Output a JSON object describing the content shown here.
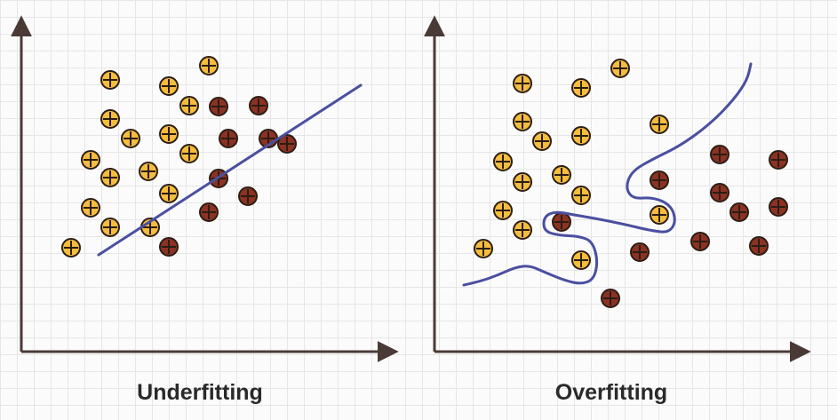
{
  "panels": [
    {
      "id": "underfitting",
      "caption": "Underfitting",
      "points": {
        "yellow": [
          [
            80,
            279
          ],
          [
            102,
            180
          ],
          [
            102,
            234
          ],
          [
            124,
            90
          ],
          [
            124,
            134
          ],
          [
            124,
            200
          ],
          [
            124,
            256
          ],
          [
            147,
            156
          ],
          [
            167,
            193
          ],
          [
            169,
            256
          ],
          [
            190,
            97
          ],
          [
            190,
            151
          ],
          [
            190,
            218
          ],
          [
            213,
            119
          ],
          [
            213,
            173
          ],
          [
            235,
            74
          ]
        ],
        "red": [
          [
            190,
            278
          ],
          [
            235,
            239
          ],
          [
            246,
            120
          ],
          [
            246,
            201
          ],
          [
            257,
            156
          ],
          [
            279,
            221
          ],
          [
            291,
            119
          ],
          [
            302,
            156
          ],
          [
            323,
            162
          ]
        ]
      },
      "fit_line": [
        [
          111,
          287
        ],
        [
          406,
          96
        ]
      ]
    },
    {
      "id": "overfitting",
      "caption": "Overfitting",
      "points": {
        "yellow": [
          [
            544,
            280
          ],
          [
            566,
            182
          ],
          [
            566,
            237
          ],
          [
            588,
            94
          ],
          [
            588,
            137
          ],
          [
            588,
            205
          ],
          [
            588,
            259
          ],
          [
            610,
            159
          ],
          [
            632,
            197
          ],
          [
            654,
            99
          ],
          [
            654,
            153
          ],
          [
            654,
            220
          ],
          [
            654,
            293
          ],
          [
            698,
            77
          ],
          [
            742,
            140
          ],
          [
            742,
            242
          ]
        ],
        "red": [
          [
            632,
            250
          ],
          [
            687,
            336
          ],
          [
            720,
            284
          ],
          [
            742,
            203
          ],
          [
            788,
            272
          ],
          [
            810,
            174
          ],
          [
            810,
            217
          ],
          [
            832,
            239
          ],
          [
            854,
            277
          ],
          [
            876,
            180
          ],
          [
            876,
            233
          ]
        ]
      },
      "fit_curve": [
        [
          522,
          321
        ],
        [
          540,
          317
        ],
        [
          560,
          310
        ],
        [
          580,
          301
        ],
        [
          596,
          299
        ],
        [
          614,
          307
        ],
        [
          636,
          316
        ],
        [
          654,
          320
        ],
        [
          668,
          315
        ],
        [
          673,
          295
        ],
        [
          667,
          272
        ],
        [
          652,
          266
        ],
        [
          628,
          265
        ],
        [
          612,
          260
        ],
        [
          612,
          244
        ],
        [
          625,
          238
        ],
        [
          646,
          242
        ],
        [
          670,
          246
        ],
        [
          700,
          252
        ],
        [
          734,
          260
        ],
        [
          753,
          262
        ],
        [
          761,
          249
        ],
        [
          755,
          231
        ],
        [
          735,
          222
        ],
        [
          712,
          224
        ],
        [
          704,
          211
        ],
        [
          711,
          193
        ],
        [
          733,
          180
        ],
        [
          766,
          164
        ],
        [
          800,
          139
        ],
        [
          826,
          112
        ],
        [
          841,
          90
        ],
        [
          845,
          72
        ]
      ]
    }
  ],
  "colors": {
    "yellow_fill": "#f5bd3d",
    "red_fill": "#8c3223",
    "point_border": "#2b1d14",
    "axis": "#4a3a35",
    "fit": "#4a4fa0"
  }
}
